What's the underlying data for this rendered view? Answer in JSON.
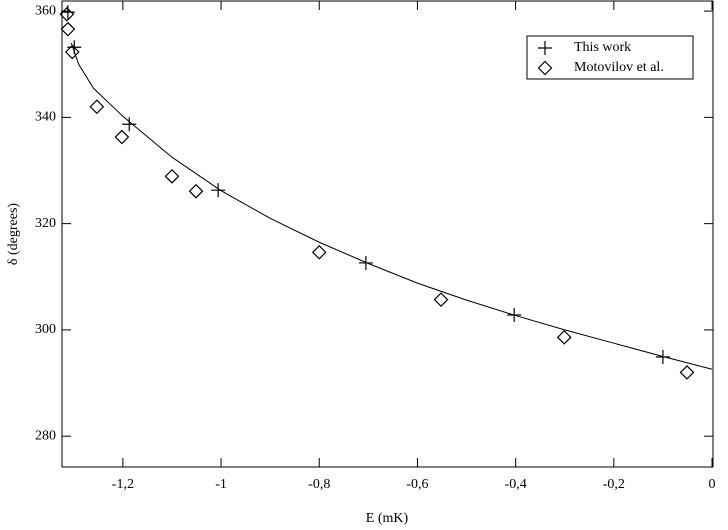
{
  "chart_data": {
    "type": "scatter",
    "xlabel": "E (mK)",
    "ylabel": "δ  (degrees)",
    "xlim": [
      -1.324,
      0.002
    ],
    "ylim": [
      274.2,
      361.9
    ],
    "xticks": [
      {
        "value": -1.2,
        "label": "-1,2"
      },
      -1,
      {
        "value": -0.8,
        "label": "-0,8"
      },
      {
        "value": -0.6,
        "label": "-0,6"
      },
      {
        "value": -0.4,
        "label": "-0,4"
      },
      {
        "value": -0.2,
        "label": "-0,2"
      },
      0
    ],
    "yticks": [
      280,
      300,
      320,
      340,
      360
    ],
    "legend": "upper right",
    "series": [
      {
        "name": "This work",
        "marker": "plus",
        "color": "#000000",
        "x": [
          -1.312,
          -1.299,
          -1.187,
          -1.006,
          -0.705,
          -0.403,
          -0.1
        ],
        "values": [
          359.8,
          353.2,
          338.7,
          326.3,
          312.6,
          302.8,
          294.9
        ]
      },
      {
        "name": "Motovilov et al.",
        "marker": "diamond",
        "color": "#000000",
        "x": [
          -1.314,
          -1.312,
          -1.303,
          -1.253,
          -1.202,
          -1.1,
          -1.051,
          -0.8,
          -0.552,
          -0.301,
          -0.051
        ],
        "values": [
          359.4,
          356.6,
          352.3,
          342,
          336.3,
          328.9,
          326.1,
          314.6,
          305.7,
          298.6,
          292
        ]
      },
      {
        "marker": "line",
        "color": "#000000",
        "x": [
          -1.305,
          -1.29,
          -1.26,
          -1.2,
          -1.1,
          -1.0,
          -0.9,
          -0.8,
          -0.7,
          -0.6,
          -0.5,
          -0.4,
          -0.3,
          -0.2,
          -0.1,
          0
        ],
        "values": [
          354,
          350,
          345.5,
          340.2,
          332.5,
          326.2,
          321,
          316.5,
          312.5,
          308.8,
          305.6,
          302.7,
          300,
          297.5,
          295,
          292.6
        ]
      }
    ]
  }
}
